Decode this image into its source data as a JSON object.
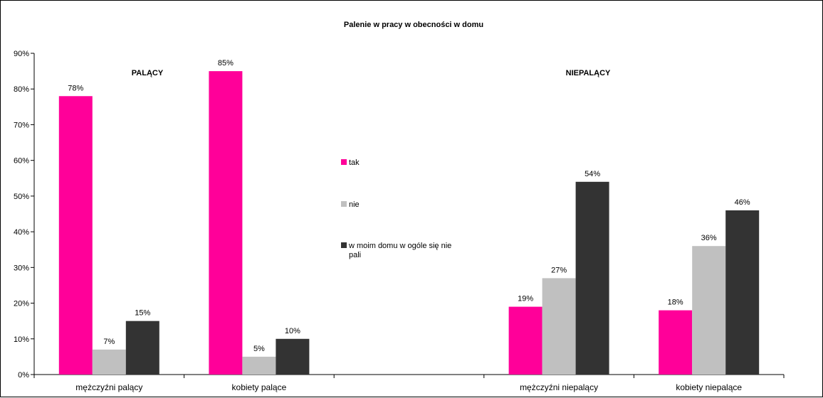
{
  "chart_data": {
    "type": "bar",
    "title": "Palenie w pracy w obecności w domu",
    "categories": [
      "mężczyźni palący",
      "kobiety palące",
      "",
      "mężczyźni niepalący",
      "kobiety niepalące"
    ],
    "series": [
      {
        "name": "tak",
        "color": "#ff0099",
        "values": [
          78,
          85,
          null,
          19,
          18
        ]
      },
      {
        "name": "nie",
        "color": "#c0c0c0",
        "values": [
          7,
          5,
          null,
          27,
          36
        ]
      },
      {
        "name": "w moim domu w ogóle się nie pali",
        "color": "#333333",
        "values": [
          15,
          10,
          null,
          54,
          46
        ]
      }
    ],
    "group_labels": [
      "PALĄCY",
      "NIEPALĄCY"
    ],
    "y_unit": "%",
    "ylim": [
      0,
      90
    ],
    "ytick_step": 10,
    "grid": false,
    "legend_position": "center"
  }
}
